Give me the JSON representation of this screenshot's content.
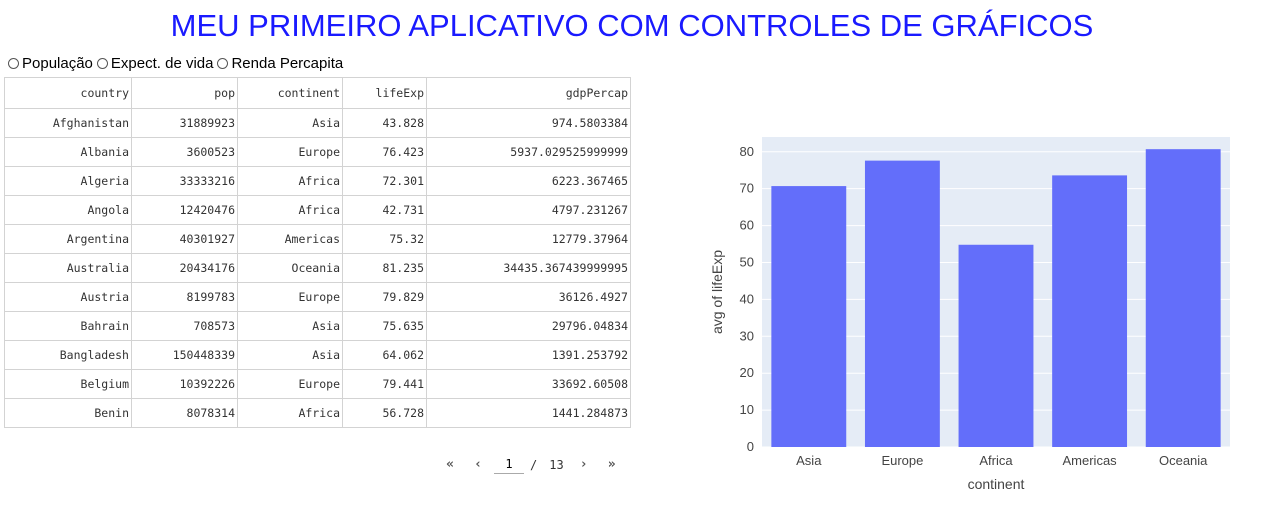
{
  "title": "MEU PRIMEIRO APLICATIVO COM CONTROLES DE GRÁFICOS",
  "radios": [
    {
      "label": "População"
    },
    {
      "label": "Expect. de vida"
    },
    {
      "label": "Renda Percapita"
    }
  ],
  "table": {
    "columns": [
      "country",
      "pop",
      "continent",
      "lifeExp",
      "gdpPercap"
    ],
    "rows": [
      [
        "Afghanistan",
        "31889923",
        "Asia",
        "43.828",
        "974.5803384"
      ],
      [
        "Albania",
        "3600523",
        "Europe",
        "76.423",
        "5937.029525999999"
      ],
      [
        "Algeria",
        "33333216",
        "Africa",
        "72.301",
        "6223.367465"
      ],
      [
        "Angola",
        "12420476",
        "Africa",
        "42.731",
        "4797.231267"
      ],
      [
        "Argentina",
        "40301927",
        "Americas",
        "75.32",
        "12779.37964"
      ],
      [
        "Australia",
        "20434176",
        "Oceania",
        "81.235",
        "34435.367439999995"
      ],
      [
        "Austria",
        "8199783",
        "Europe",
        "79.829",
        "36126.4927"
      ],
      [
        "Bahrain",
        "708573",
        "Asia",
        "75.635",
        "29796.04834"
      ],
      [
        "Bangladesh",
        "150448339",
        "Asia",
        "64.062",
        "1391.253792"
      ],
      [
        "Belgium",
        "10392226",
        "Europe",
        "79.441",
        "33692.60508"
      ],
      [
        "Benin",
        "8078314",
        "Africa",
        "56.728",
        "1441.284873"
      ]
    ]
  },
  "pager": {
    "first": "«",
    "prev": "‹",
    "current": "1",
    "separator": "/",
    "total": "13",
    "next": "›",
    "last": "»"
  },
  "chart_data": {
    "type": "bar",
    "categories": [
      "Asia",
      "Europe",
      "Africa",
      "Americas",
      "Oceania"
    ],
    "values": [
      70.7,
      77.6,
      54.8,
      73.6,
      80.7
    ],
    "xlabel": "continent",
    "ylabel": "avg of lifeExp",
    "ylim": [
      0,
      84
    ],
    "yticks": [
      0,
      10,
      20,
      30,
      40,
      50,
      60,
      70,
      80
    ],
    "bar_color": "#636efa",
    "plot_bg": "#e5ecf6",
    "grid": true
  }
}
